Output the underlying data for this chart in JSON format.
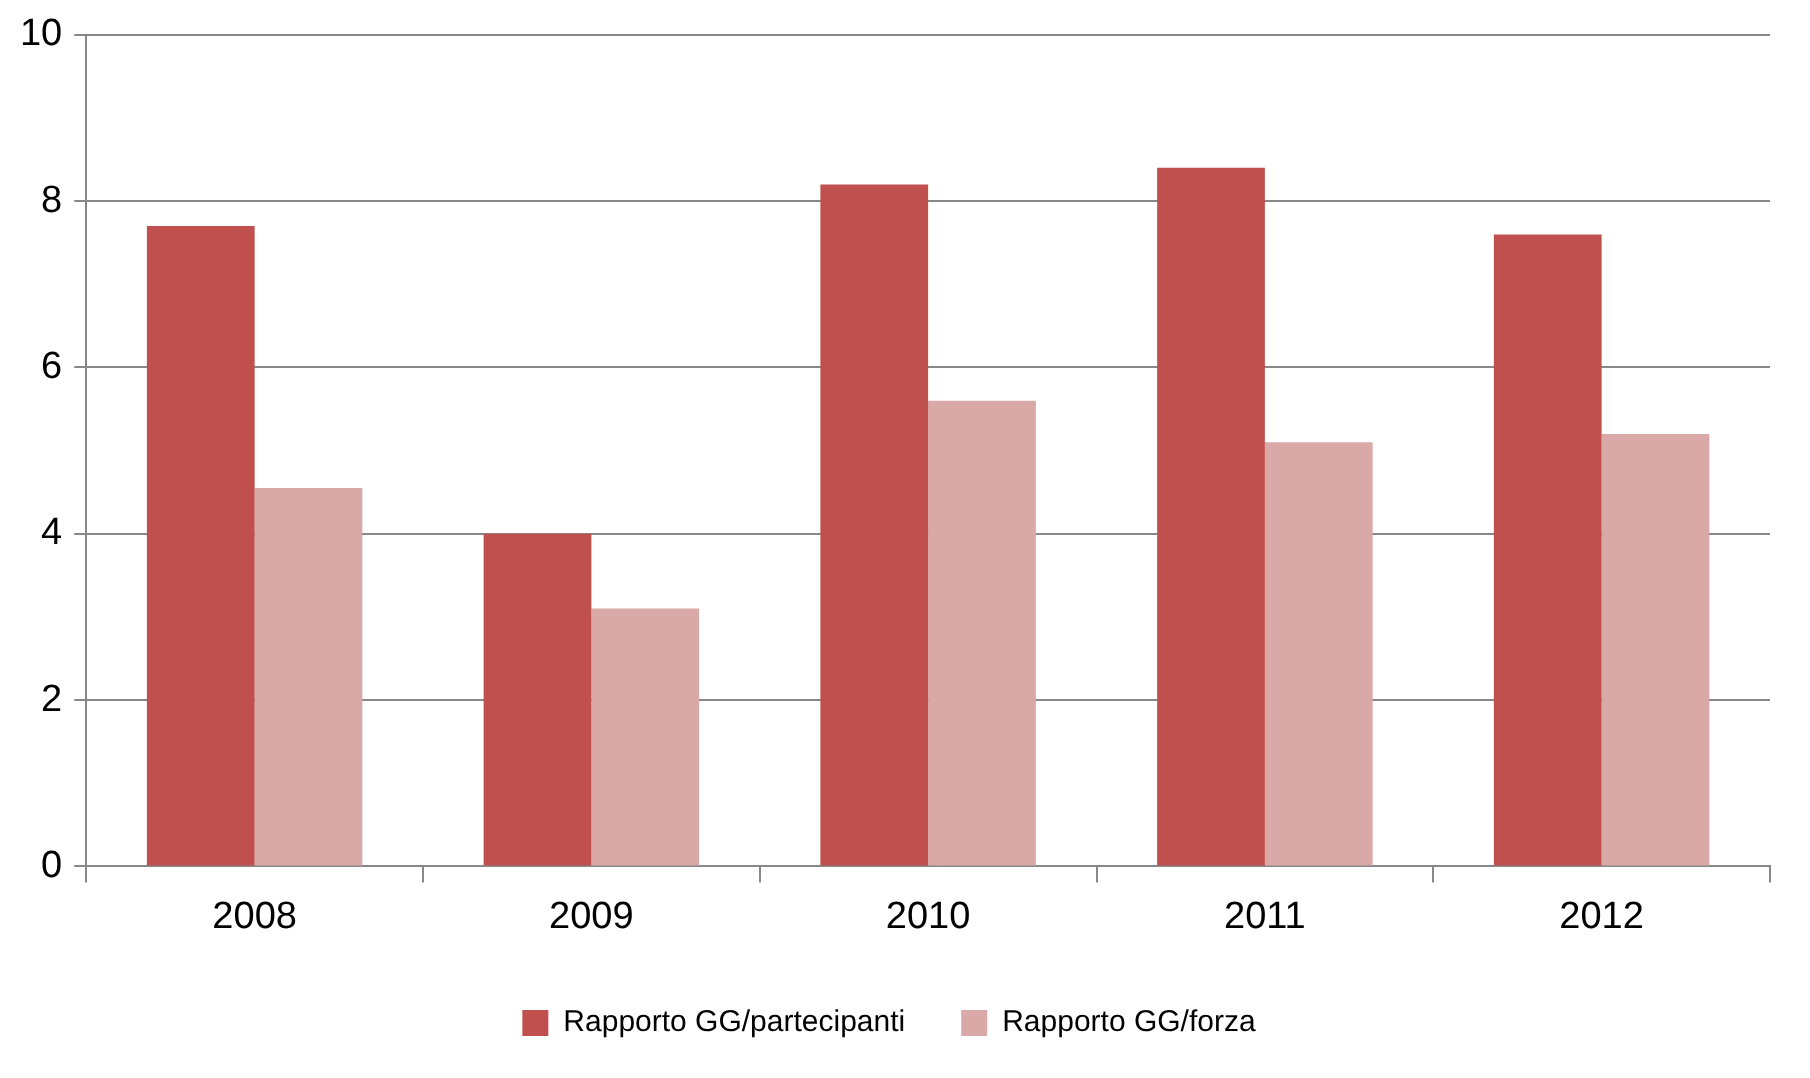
{
  "chart_data": {
    "type": "bar",
    "categories": [
      "2008",
      "2009",
      "2010",
      "2011",
      "2012"
    ],
    "series": [
      {
        "name": "Rapporto GG/partecipanti",
        "color": "#c0504d",
        "values": [
          7.7,
          4.0,
          8.2,
          8.4,
          7.6
        ]
      },
      {
        "name": "Rapporto GG/forza",
        "color": "#d9a9a8",
        "values": [
          4.55,
          3.1,
          5.6,
          5.1,
          5.2
        ]
      }
    ],
    "ylim": [
      0,
      10
    ],
    "yticks": [
      0,
      2,
      4,
      6,
      8,
      10
    ],
    "grid": "y",
    "legend": "bottom"
  }
}
